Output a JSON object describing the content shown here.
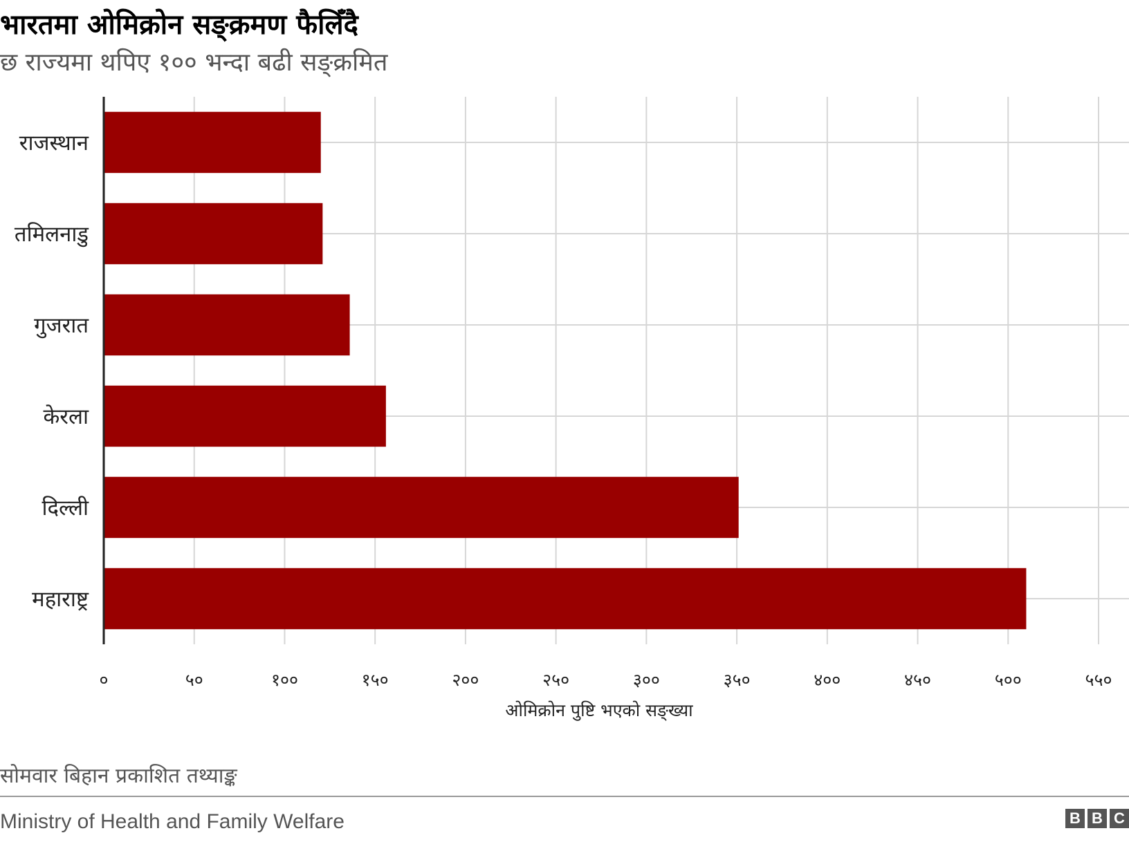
{
  "chart_data": {
    "type": "bar",
    "orientation": "horizontal",
    "title": "भारतमा ओमिक्रोन सङ्क्रमण फैलिँदै",
    "subtitle": "छ राज्यमा थपिए १०० भन्दा बढी सङ्क्रमित",
    "categories": [
      "राजस्थान",
      "तमिलनाडु",
      "गुजरात",
      "केरला",
      "दिल्ली",
      "महाराष्ट्र"
    ],
    "values": [
      120,
      121,
      136,
      156,
      351,
      510
    ],
    "xlabel": "ओमिक्रोन पुष्टि भएको सङ्ख्या",
    "ylabel": "",
    "xlim": [
      0,
      550
    ],
    "xticks": [
      0,
      50,
      100,
      150,
      200,
      250,
      300,
      350,
      400,
      450,
      500,
      550
    ],
    "xtick_labels": [
      "०",
      "५०",
      "१००",
      "१५०",
      "२००",
      "२५०",
      "३००",
      "३५०",
      "४००",
      "४५०",
      "५००",
      "५५०"
    ],
    "grid": true,
    "legend": "none",
    "bar_color": "#990000"
  },
  "note": "सोमवार बिहान प्रकाशित तथ्याङ्क",
  "source": "Ministry of Health and Family Welfare",
  "logo": [
    "B",
    "B",
    "C"
  ]
}
